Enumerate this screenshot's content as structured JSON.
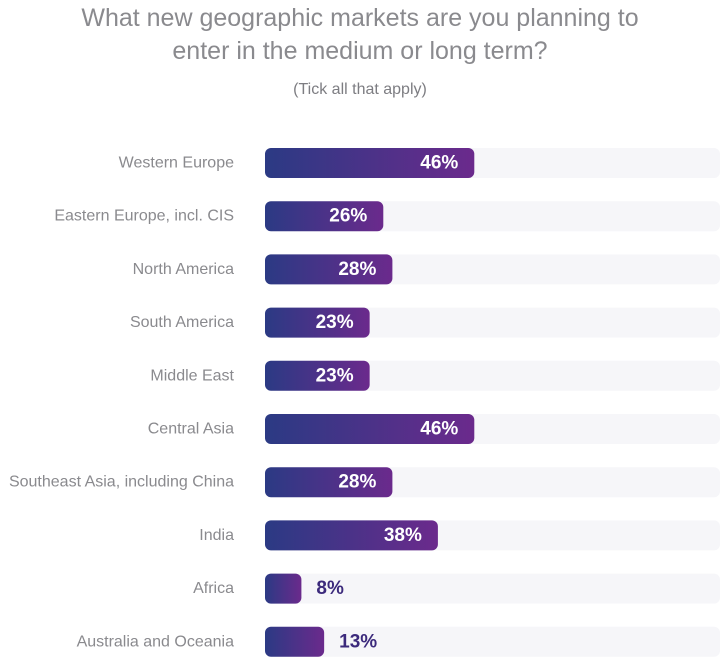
{
  "chart_data": {
    "type": "bar",
    "orientation": "horizontal",
    "title": "What new geographic markets are you planning to enter in the medium or long term?",
    "title_lines": [
      "What new geographic markets are you planning to",
      "enter in the medium or long term?"
    ],
    "subtitle": "(Tick all that apply)",
    "categories": [
      "Western Europe",
      "Eastern Europe, incl. CIS",
      "North America",
      "South America",
      "Middle East",
      "Central Asia",
      "Southeast Asia, including China",
      "India",
      "Africa",
      "Australia and Oceania"
    ],
    "values": [
      46,
      26,
      28,
      23,
      23,
      46,
      28,
      38,
      8,
      13
    ],
    "value_labels": [
      "46%",
      "26%",
      "28%",
      "23%",
      "23%",
      "46%",
      "28%",
      "38%",
      "8%",
      "13%"
    ],
    "xlim": [
      0,
      100
    ],
    "grid": false,
    "legend": "none",
    "colors": {
      "bar_start": "#2b3a84",
      "bar_end": "#6b2a8c",
      "track": "#f6f6f9",
      "label_inside": "#ffffff",
      "label_outside": "#3c2a7c"
    }
  }
}
